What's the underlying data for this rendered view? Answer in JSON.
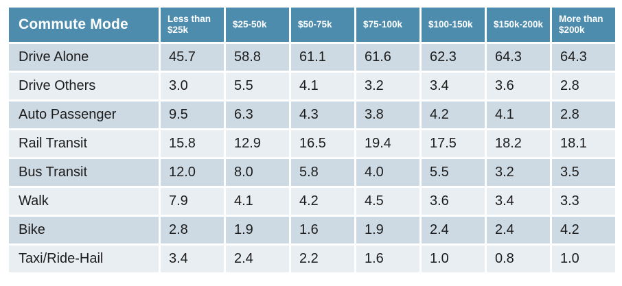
{
  "table": {
    "header": {
      "mode_label": "Commute Mode",
      "columns": [
        "Less than $25k",
        "$25-50k",
        "$50-75k",
        "$75-100k",
        "$100-150k",
        "$150k-200k",
        "More than $200k"
      ]
    },
    "rows": [
      {
        "label": "Drive Alone",
        "values": [
          "45.7",
          "58.8",
          "61.1",
          "61.6",
          "62.3",
          "64.3",
          "64.3"
        ]
      },
      {
        "label": "Drive Others",
        "values": [
          "3.0",
          "5.5",
          "4.1",
          "3.2",
          "3.4",
          "3.6",
          "2.8"
        ]
      },
      {
        "label": "Auto Passenger",
        "values": [
          "9.5",
          "6.3",
          "4.3",
          "3.8",
          "4.2",
          "4.1",
          "2.8"
        ]
      },
      {
        "label": "Rail Transit",
        "values": [
          "15.8",
          "12.9",
          "16.5",
          "19.4",
          "17.5",
          "18.2",
          "18.1"
        ]
      },
      {
        "label": "Bus Transit",
        "values": [
          "12.0",
          "8.0",
          "5.8",
          "4.0",
          "5.5",
          "3.2",
          "3.5"
        ]
      },
      {
        "label": "Walk",
        "values": [
          "7.9",
          "4.1",
          "4.2",
          "4.5",
          "3.6",
          "3.4",
          "3.3"
        ]
      },
      {
        "label": "Bike",
        "values": [
          "2.8",
          "1.9",
          "1.6",
          "1.9",
          "2.4",
          "2.4",
          "4.2"
        ]
      },
      {
        "label": "Taxi/Ride-Hail",
        "values": [
          "3.4",
          "2.4",
          "2.2",
          "1.6",
          "1.0",
          "0.8",
          "1.0"
        ]
      }
    ]
  },
  "colors": {
    "header_bg": "#4E8CAD",
    "header_text": "#FFFFFF",
    "row_band_dark": "#CEDAE3",
    "row_band_light": "#E9EEF2",
    "body_text": "#1C1C1C",
    "background": "#FFFFFF"
  },
  "chart_data": {
    "type": "table",
    "row_header": "Commute Mode",
    "columns": [
      "Less than $25k",
      "$25-50k",
      "$50-75k",
      "$75-100k",
      "$100-150k",
      "$150k-200k",
      "More than $200k"
    ],
    "rows": [
      {
        "label": "Drive Alone",
        "values": [
          45.7,
          58.8,
          61.1,
          61.6,
          62.3,
          64.3,
          64.3
        ]
      },
      {
        "label": "Drive Others",
        "values": [
          3.0,
          5.5,
          4.1,
          3.2,
          3.4,
          3.6,
          2.8
        ]
      },
      {
        "label": "Auto Passenger",
        "values": [
          9.5,
          6.3,
          4.3,
          3.8,
          4.2,
          4.1,
          2.8
        ]
      },
      {
        "label": "Rail Transit",
        "values": [
          15.8,
          12.9,
          16.5,
          19.4,
          17.5,
          18.2,
          18.1
        ]
      },
      {
        "label": "Bus Transit",
        "values": [
          12.0,
          8.0,
          5.8,
          4.0,
          5.5,
          3.2,
          3.5
        ]
      },
      {
        "label": "Walk",
        "values": [
          7.9,
          4.1,
          4.2,
          4.5,
          3.6,
          3.4,
          3.3
        ]
      },
      {
        "label": "Bike",
        "values": [
          2.8,
          1.9,
          1.6,
          1.9,
          2.4,
          2.4,
          4.2
        ]
      },
      {
        "label": "Taxi/Ride-Hail",
        "values": [
          3.4,
          2.4,
          2.2,
          1.6,
          1.0,
          0.8,
          1.0
        ]
      }
    ]
  }
}
